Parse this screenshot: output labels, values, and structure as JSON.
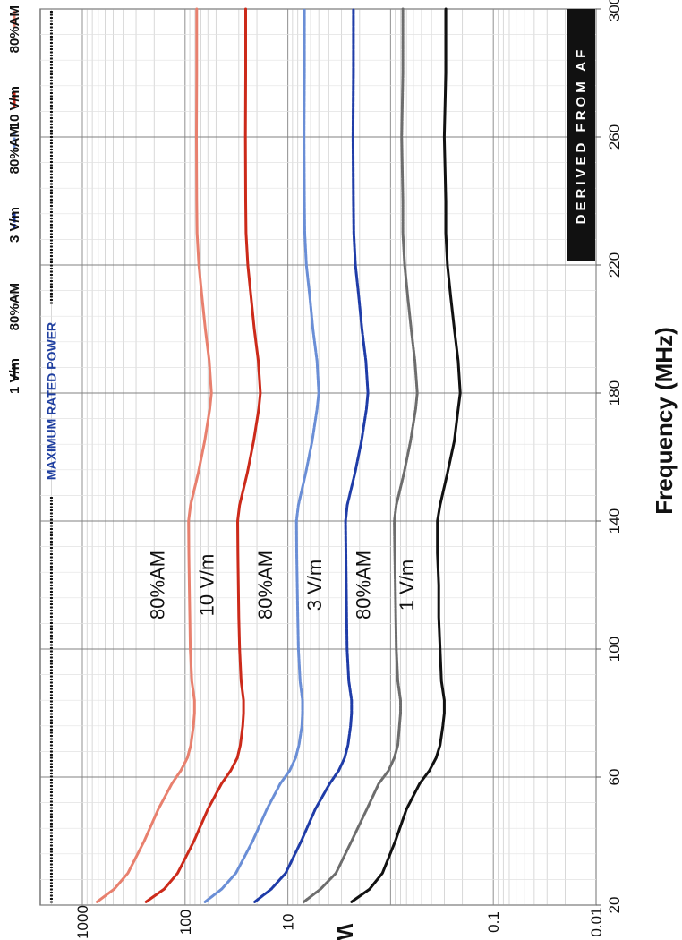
{
  "chart_data": {
    "type": "line",
    "orientation": "rotated-90-clockwise",
    "xlabel": "Frequency (MHz)",
    "ylabel": "W",
    "x_ticks": [
      "20",
      "60",
      "100",
      "140",
      "180",
      "220",
      "260",
      "300"
    ],
    "y_ticks": [
      "0.01",
      "0.1",
      "10",
      "100",
      "1000"
    ],
    "xlim": [
      20,
      300
    ],
    "ylim": [
      0.01,
      3000
    ],
    "y_scale": "log",
    "grid": true,
    "legend_position": "top",
    "max_power": {
      "label": "MAXIMUM RATED POWER",
      "value": 2000
    },
    "derived_label": "DERIVED FROM AF",
    "series": [
      {
        "name": "1 V/m",
        "label": "1 V/m",
        "color": "#111111",
        "dash": "solid",
        "points": [
          [
            21,
            2.4
          ],
          [
            25,
            1.6
          ],
          [
            30,
            1.2
          ],
          [
            40,
            0.9
          ],
          [
            50,
            0.7
          ],
          [
            58,
            0.52
          ],
          [
            62,
            0.42
          ],
          [
            66,
            0.36
          ],
          [
            70,
            0.33
          ],
          [
            76,
            0.31
          ],
          [
            80,
            0.3
          ],
          [
            84,
            0.3
          ],
          [
            90,
            0.32
          ],
          [
            100,
            0.33
          ],
          [
            110,
            0.34
          ],
          [
            120,
            0.34
          ],
          [
            130,
            0.35
          ],
          [
            140,
            0.35
          ],
          [
            145,
            0.33
          ],
          [
            155,
            0.28
          ],
          [
            165,
            0.24
          ],
          [
            175,
            0.22
          ],
          [
            180,
            0.21
          ],
          [
            190,
            0.22
          ],
          [
            200,
            0.24
          ],
          [
            210,
            0.26
          ],
          [
            220,
            0.28
          ],
          [
            230,
            0.29
          ],
          [
            240,
            0.29
          ],
          [
            260,
            0.3
          ],
          [
            280,
            0.29
          ],
          [
            300,
            0.29
          ]
        ]
      },
      {
        "name": "80%AM",
        "label": "80%AM",
        "color": "#6d6d6d",
        "dash": "dotted",
        "points": [
          [
            21,
            7.0
          ],
          [
            25,
            4.8
          ],
          [
            30,
            3.4
          ],
          [
            40,
            2.4
          ],
          [
            50,
            1.7
          ],
          [
            58,
            1.3
          ],
          [
            62,
            1.05
          ],
          [
            66,
            0.92
          ],
          [
            70,
            0.85
          ],
          [
            76,
            0.82
          ],
          [
            80,
            0.8
          ],
          [
            84,
            0.8
          ],
          [
            90,
            0.85
          ],
          [
            100,
            0.88
          ],
          [
            110,
            0.89
          ],
          [
            120,
            0.9
          ],
          [
            130,
            0.91
          ],
          [
            140,
            0.92
          ],
          [
            145,
            0.88
          ],
          [
            155,
            0.74
          ],
          [
            165,
            0.64
          ],
          [
            175,
            0.57
          ],
          [
            180,
            0.55
          ],
          [
            190,
            0.58
          ],
          [
            200,
            0.63
          ],
          [
            210,
            0.68
          ],
          [
            220,
            0.73
          ],
          [
            230,
            0.76
          ],
          [
            240,
            0.76
          ],
          [
            260,
            0.78
          ],
          [
            280,
            0.76
          ],
          [
            300,
            0.76
          ]
        ]
      },
      {
        "name": "3 V/m",
        "label": "3 V/m",
        "color": "#1f3ca8",
        "dash": "dashed",
        "points": [
          [
            21,
            21
          ],
          [
            25,
            14.5
          ],
          [
            30,
            10.5
          ],
          [
            40,
            7.4
          ],
          [
            50,
            5.4
          ],
          [
            58,
            3.9
          ],
          [
            62,
            3.2
          ],
          [
            66,
            2.8
          ],
          [
            70,
            2.6
          ],
          [
            76,
            2.45
          ],
          [
            80,
            2.4
          ],
          [
            84,
            2.4
          ],
          [
            90,
            2.55
          ],
          [
            100,
            2.65
          ],
          [
            110,
            2.68
          ],
          [
            120,
            2.7
          ],
          [
            130,
            2.72
          ],
          [
            140,
            2.74
          ],
          [
            145,
            2.64
          ],
          [
            155,
            2.22
          ],
          [
            165,
            1.92
          ],
          [
            175,
            1.72
          ],
          [
            180,
            1.66
          ],
          [
            190,
            1.74
          ],
          [
            200,
            1.9
          ],
          [
            210,
            2.04
          ],
          [
            220,
            2.2
          ],
          [
            230,
            2.28
          ],
          [
            240,
            2.3
          ],
          [
            260,
            2.32
          ],
          [
            280,
            2.3
          ],
          [
            300,
            2.3
          ]
        ]
      },
      {
        "name": "80%AM",
        "label": "80%AM",
        "color": "#6a8ed6",
        "dash": "dashed",
        "points": [
          [
            21,
            64
          ],
          [
            25,
            44
          ],
          [
            30,
            32
          ],
          [
            40,
            22
          ],
          [
            50,
            16
          ],
          [
            58,
            11.8
          ],
          [
            62,
            9.6
          ],
          [
            66,
            8.4
          ],
          [
            70,
            7.8
          ],
          [
            76,
            7.3
          ],
          [
            80,
            7.2
          ],
          [
            84,
            7.2
          ],
          [
            90,
            7.6
          ],
          [
            100,
            7.9
          ],
          [
            110,
            8.0
          ],
          [
            120,
            8.1
          ],
          [
            130,
            8.2
          ],
          [
            140,
            8.25
          ],
          [
            145,
            7.9
          ],
          [
            155,
            6.7
          ],
          [
            165,
            5.8
          ],
          [
            175,
            5.2
          ],
          [
            180,
            5.0
          ],
          [
            190,
            5.2
          ],
          [
            200,
            5.7
          ],
          [
            210,
            6.1
          ],
          [
            220,
            6.6
          ],
          [
            230,
            6.85
          ],
          [
            240,
            6.9
          ],
          [
            260,
            6.95
          ],
          [
            280,
            6.9
          ],
          [
            300,
            6.9
          ]
        ]
      },
      {
        "name": "10 V/m",
        "label": "10 V/m",
        "color": "#cc2a1a",
        "dash": "solid",
        "points": [
          [
            21,
            240
          ],
          [
            25,
            160
          ],
          [
            30,
            118
          ],
          [
            40,
            82
          ],
          [
            50,
            60
          ],
          [
            58,
            44
          ],
          [
            62,
            36
          ],
          [
            66,
            31
          ],
          [
            70,
            29
          ],
          [
            76,
            27.5
          ],
          [
            80,
            27
          ],
          [
            84,
            27
          ],
          [
            90,
            28.5
          ],
          [
            100,
            29.5
          ],
          [
            110,
            30
          ],
          [
            120,
            30.3
          ],
          [
            130,
            30.6
          ],
          [
            140,
            30.8
          ],
          [
            145,
            29.5
          ],
          [
            155,
            24.8
          ],
          [
            165,
            21.5
          ],
          [
            175,
            19.2
          ],
          [
            180,
            18.5
          ],
          [
            190,
            19.4
          ],
          [
            200,
            21.2
          ],
          [
            210,
            22.8
          ],
          [
            220,
            24.5
          ],
          [
            230,
            25.5
          ],
          [
            240,
            25.7
          ],
          [
            260,
            25.9
          ],
          [
            280,
            25.7
          ],
          [
            300,
            25.7
          ]
        ]
      },
      {
        "name": "80%AM",
        "label": "80%AM",
        "color": "#e8806e",
        "dash": "solid",
        "points": [
          [
            21,
            720
          ],
          [
            25,
            490
          ],
          [
            30,
            360
          ],
          [
            40,
            250
          ],
          [
            50,
            182
          ],
          [
            58,
            134
          ],
          [
            62,
            110
          ],
          [
            66,
            95
          ],
          [
            70,
            88
          ],
          [
            76,
            83
          ],
          [
            80,
            81
          ],
          [
            84,
            81
          ],
          [
            90,
            86
          ],
          [
            100,
            89
          ],
          [
            110,
            90
          ],
          [
            120,
            91
          ],
          [
            130,
            92
          ],
          [
            140,
            92.5
          ],
          [
            145,
            88.5
          ],
          [
            155,
            74.5
          ],
          [
            165,
            64.5
          ],
          [
            175,
            57.5
          ],
          [
            180,
            55.5
          ],
          [
            190,
            58.2
          ],
          [
            200,
            63.5
          ],
          [
            210,
            68.5
          ],
          [
            220,
            73.5
          ],
          [
            230,
            76.5
          ],
          [
            240,
            77
          ],
          [
            260,
            77.5
          ],
          [
            280,
            77
          ],
          [
            300,
            77
          ]
        ]
      }
    ],
    "legend": [
      {
        "text": "1 V/m",
        "color": "#111111",
        "dash": "solid"
      },
      {
        "text": "80%AM",
        "color": "#6d6d6d",
        "dash": "dotted"
      },
      {
        "text": "3 V/m",
        "color": "#1f3ca8",
        "dash": "dashed"
      },
      {
        "text": "80%AM",
        "color": "#6a8ed6",
        "dash": "dashed"
      },
      {
        "text": "10 V/m",
        "color": "#cc2a1a",
        "dash": "solid"
      },
      {
        "text": "80%AM",
        "color": "#e8806e",
        "dash": "solid"
      }
    ]
  }
}
